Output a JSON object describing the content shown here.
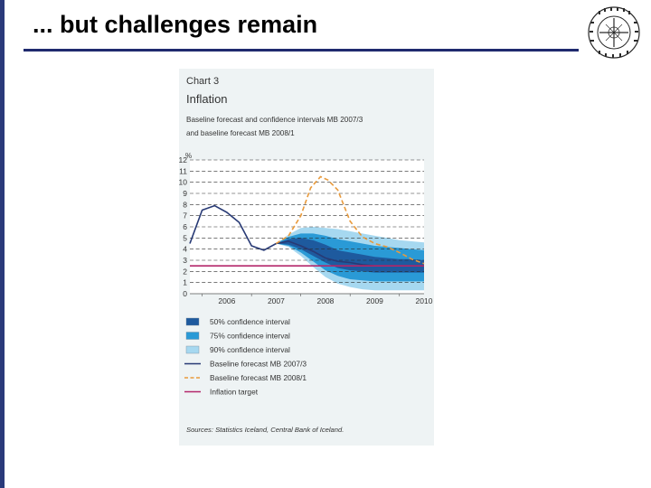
{
  "slide": {
    "title": "... but challenges remain"
  },
  "chart_header": {
    "number": "Chart 3",
    "title": "Inflation",
    "subtitle_1": "Baseline forecast and confidence intervals MB 2007/3",
    "subtitle_2": "and baseline forecast MB 2008/1",
    "y_unit": "%"
  },
  "chart_data": {
    "type": "line",
    "title": "Inflation",
    "ylabel": "%",
    "ylim": [
      0,
      12
    ],
    "xlim": [
      2005.75,
      2010.5
    ],
    "y_ticks": [
      0,
      1,
      2,
      3,
      4,
      5,
      6,
      7,
      8,
      9,
      10,
      11,
      12
    ],
    "x_ticks": [
      "2006",
      "2007",
      "2008",
      "2009",
      "2010"
    ],
    "x_tick_values": [
      2006.0,
      2007.0,
      2008.0,
      2009.0,
      2010.0
    ],
    "grid": "horizontal-dashed",
    "colors": {
      "ci50": "#1e5a9e",
      "ci75": "#2a9ad6",
      "ci90": "#a6d8f0",
      "baseline_2007_3": "#283a75",
      "baseline_2008_1": "#e89a3c",
      "target": "#b3276b"
    },
    "series": [
      {
        "name": "Baseline forecast MB 2007/3",
        "x": [
          2005.75,
          2006.0,
          2006.25,
          2006.5,
          2006.75,
          2007.0,
          2007.25,
          2007.5,
          2007.75,
          2008.0,
          2008.25,
          2008.5,
          2008.75,
          2009.0,
          2009.25,
          2009.5,
          2009.75,
          2010.0,
          2010.25,
          2010.5
        ],
        "values": [
          4.5,
          7.5,
          7.9,
          7.3,
          6.4,
          4.3,
          3.9,
          4.5,
          4.7,
          4.3,
          3.8,
          3.2,
          2.9,
          2.8,
          2.6,
          2.5,
          2.5,
          2.5,
          2.5,
          2.5
        ]
      },
      {
        "name": "Baseline forecast MB 2008/1",
        "x": [
          2007.5,
          2007.75,
          2008.0,
          2008.2,
          2008.4,
          2008.55,
          2008.75,
          2009.0,
          2009.25,
          2009.5,
          2009.75,
          2010.0,
          2010.25,
          2010.5
        ],
        "values": [
          4.5,
          5.2,
          7.0,
          9.5,
          10.5,
          10.2,
          9.3,
          6.5,
          5.1,
          4.5,
          4.2,
          3.7,
          3.1,
          2.7
        ]
      },
      {
        "name": "Inflation target",
        "x": [
          2005.75,
          2010.5
        ],
        "values": [
          2.5,
          2.5
        ]
      }
    ],
    "bands": [
      {
        "name": "90% confidence interval",
        "x": [
          2007.5,
          2007.75,
          2008.0,
          2008.25,
          2008.5,
          2008.75,
          2009.0,
          2009.25,
          2009.5,
          2009.75,
          2010.0,
          2010.25,
          2010.5
        ],
        "lower": [
          4.5,
          4.2,
          3.4,
          2.4,
          1.5,
          0.9,
          0.6,
          0.4,
          0.3,
          0.3,
          0.3,
          0.3,
          0.3
        ],
        "upper": [
          4.5,
          5.3,
          5.9,
          6.0,
          5.9,
          5.8,
          5.6,
          5.4,
          5.2,
          5.0,
          4.8,
          4.7,
          4.6
        ]
      },
      {
        "name": "75% confidence interval",
        "x": [
          2007.5,
          2007.75,
          2008.0,
          2008.25,
          2008.5,
          2008.75,
          2009.0,
          2009.25,
          2009.5,
          2009.75,
          2010.0,
          2010.25,
          2010.5
        ],
        "lower": [
          4.5,
          4.3,
          3.7,
          2.9,
          2.1,
          1.6,
          1.3,
          1.2,
          1.1,
          1.1,
          1.1,
          1.1,
          1.1
        ],
        "upper": [
          4.5,
          5.1,
          5.4,
          5.4,
          5.2,
          4.9,
          4.7,
          4.5,
          4.3,
          4.2,
          4.1,
          4.0,
          3.9
        ]
      },
      {
        "name": "50% confidence interval",
        "x": [
          2007.5,
          2007.75,
          2008.0,
          2008.25,
          2008.5,
          2008.75,
          2009.0,
          2009.25,
          2009.5,
          2009.75,
          2010.0,
          2010.25,
          2010.5
        ],
        "lower": [
          4.5,
          4.4,
          4.0,
          3.4,
          2.8,
          2.3,
          2.1,
          2.0,
          1.9,
          1.9,
          1.9,
          1.9,
          1.9
        ],
        "upper": [
          4.5,
          4.9,
          5.0,
          4.8,
          4.4,
          3.9,
          3.7,
          3.5,
          3.3,
          3.2,
          3.1,
          3.1,
          3.0
        ]
      }
    ],
    "legend": [
      {
        "label": "50% confidence interval",
        "kind": "box",
        "color": "#1e5a9e"
      },
      {
        "label": "75% confidence interval",
        "kind": "box",
        "color": "#2a9ad6"
      },
      {
        "label": "90% confidence interval",
        "kind": "box",
        "color": "#a6d8f0"
      },
      {
        "label": "Baseline forecast MB 2007/3",
        "kind": "line",
        "color": "#283a75"
      },
      {
        "label": "Baseline forecast MB 2008/1",
        "kind": "dash",
        "color": "#e89a3c"
      },
      {
        "label": "Inflation target",
        "kind": "line",
        "color": "#b3276b"
      }
    ],
    "legend_placement": "below",
    "source": "Sources: Statistics Iceland, Central Bank of Iceland."
  }
}
